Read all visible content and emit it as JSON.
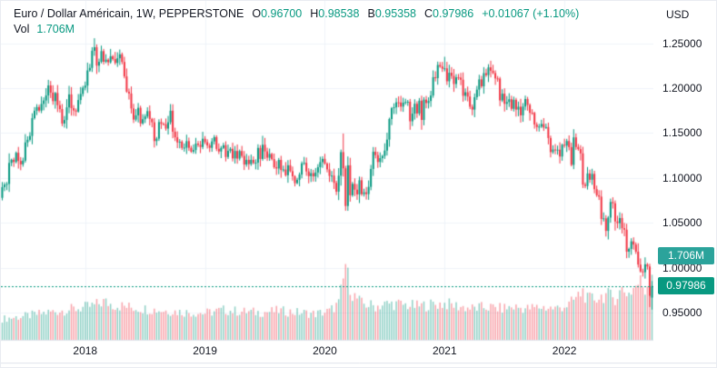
{
  "header": {
    "title": "Euro / Dollar Américain, 1W, PEPPERSTONE",
    "ohlc": [
      {
        "label": "O",
        "value": "0.96700"
      },
      {
        "label": "H",
        "value": "0.98538"
      },
      {
        "label": "B",
        "value": "0.95358"
      },
      {
        "label": "C",
        "value": "0.97986"
      }
    ],
    "change": "+0.01067 (+1.10%)",
    "vol_label": "Vol",
    "vol_value": "1.706M"
  },
  "price_axis": {
    "currency": "USD",
    "ticks": [
      "1.25000",
      "1.20000",
      "1.15000",
      "1.10000",
      "1.05000",
      "1.00000",
      "0.95000"
    ],
    "tick_prices": [
      1.25,
      1.2,
      1.15,
      1.1,
      1.05,
      1.0,
      0.95
    ]
  },
  "time_axis": {
    "years": [
      "2018",
      "2019",
      "2020",
      "2021",
      "2022"
    ]
  },
  "badges": {
    "volume": "1.706M",
    "price": "0.97986"
  },
  "colors": {
    "up": "#089981",
    "down": "#f23645",
    "vol_up": "rgba(8,153,129,0.45)",
    "vol_down": "rgba(242,54,69,0.45)",
    "grid": "#f0f3fa",
    "border": "#e0e3eb",
    "axis_text": "#131722",
    "accent_green": "#089981",
    "badge_price_bg": "#089981",
    "badge_vol_bg": "#2ba39b",
    "price_line": "#089981"
  },
  "chart_data": {
    "type": "candlestick",
    "title": "Euro / Dollar Américain",
    "exchange": "PEPPERSTONE",
    "interval": "1W",
    "quote_currency": "USD",
    "legend_values": {
      "open": 0.967,
      "high": 0.98538,
      "low": 0.95358,
      "close": 0.97986,
      "change": 0.01067,
      "change_pct": 1.1,
      "volume": "1.706M"
    },
    "current_price": 0.97986,
    "visible_price_range": {
      "from": 0.92,
      "to": 1.297
    },
    "y_ticks": [
      1.25,
      1.2,
      1.15,
      1.1,
      1.05,
      1.0,
      0.95
    ],
    "x_year_labels": [
      "2018",
      "2019",
      "2020",
      "2021",
      "2022"
    ],
    "first_open": 1.078,
    "closes_2017": [
      1.0899,
      1.0927,
      1.0934,
      1.1168,
      1.1203,
      1.1178,
      1.1281,
      1.119,
      1.1152,
      1.1193,
      1.1396,
      1.1425,
      1.1468,
      1.1666,
      1.1748,
      1.1789,
      1.175,
      1.1824,
      1.1862,
      1.1918,
      1.203,
      1.195,
      1.1855,
      1.1946,
      1.181,
      1.1767,
      1.1606,
      1.1645,
      1.1786,
      1.193,
      1.1777,
      1.1751,
      1.1739,
      1.1867,
      1.1935,
      1.2005
    ],
    "closes_2018": [
      1.2028,
      1.2196,
      1.2225,
      1.2415,
      1.2455,
      1.225,
      1.2292,
      1.2411,
      1.2293,
      1.2316,
      1.2287,
      1.2354,
      1.2323,
      1.228,
      1.2332,
      1.2376,
      1.2291,
      1.213,
      1.196,
      1.194,
      1.1774,
      1.165,
      1.1697,
      1.1781,
      1.1607,
      1.1654,
      1.1685,
      1.1744,
      1.1657,
      1.162,
      1.1411,
      1.1438,
      1.1622,
      1.1602,
      1.1599,
      1.155,
      1.162,
      1.1748,
      1.1515,
      1.1453,
      1.1396,
      1.1404,
      1.1335,
      1.1338,
      1.141,
      1.1336,
      1.1293,
      1.1311,
      1.1383,
      1.1369,
      1.1345,
      1.1437
    ],
    "closes_2019": [
      1.1399,
      1.1362,
      1.1336,
      1.1407,
      1.1455,
      1.1324,
      1.1295,
      1.1335,
      1.1365,
      1.1234,
      1.1302,
      1.1325,
      1.1218,
      1.1301,
      1.1216,
      1.13,
      1.1246,
      1.115,
      1.1202,
      1.1155,
      1.1202,
      1.1168,
      1.1171,
      1.1335,
      1.1212,
      1.137,
      1.1296,
      1.1226,
      1.1268,
      1.121,
      1.112,
      1.1106,
      1.1201,
      1.1089,
      1.1095,
      1.1031,
      1.1142,
      1.1076,
      1.1019,
      1.0943,
      1.098,
      1.1038,
      1.1163,
      1.1169,
      1.1073,
      1.1021,
      1.1054,
      1.1018,
      1.1061,
      1.1121,
      1.1177,
      1.1213
    ],
    "closes_2020": [
      1.116,
      1.1096,
      1.1024,
      1.1027,
      1.0946,
      1.0848,
      1.1026,
      1.1288,
      1.1108,
      1.0689,
      1.1141,
      1.0808,
      1.0935,
      1.087,
      1.0818,
      1.0975,
      1.082,
      1.0841,
      1.0821,
      1.0902,
      1.1101,
      1.1292,
      1.1255,
      1.1178,
      1.1221,
      1.1246,
      1.1305,
      1.1427,
      1.1656,
      1.1778,
      1.1787,
      1.1842,
      1.184,
      1.1794,
      1.1838,
      1.1846,
      1.1848,
      1.1631,
      1.1716,
      1.1826,
      1.1718,
      1.186,
      1.1646,
      1.1872,
      1.1834,
      1.1857,
      1.1918,
      1.2121,
      1.2111,
      1.2257,
      1.224,
      1.2216
    ],
    "closes_2021": [
      1.222,
      1.2076,
      1.2171,
      1.2136,
      1.2046,
      1.212,
      1.2117,
      1.2093,
      1.1915,
      1.1954,
      1.1906,
      1.1793,
      1.1761,
      1.1899,
      1.1983,
      1.2097,
      1.202,
      1.2166,
      1.2145,
      1.2231,
      1.2193,
      1.2167,
      1.2108,
      1.2106,
      1.1863,
      1.1938,
      1.1825,
      1.1845,
      1.1876,
      1.177,
      1.187,
      1.1761,
      1.1793,
      1.1697,
      1.1795,
      1.1879,
      1.1813,
      1.1725,
      1.1724,
      1.1595,
      1.1567,
      1.1572,
      1.1601,
      1.1561,
      1.1567,
      1.1445,
      1.1288,
      1.1317,
      1.1313,
      1.1315,
      1.1239,
      1.137
    ],
    "closes_2022": [
      1.136,
      1.1411,
      1.1344,
      1.1146,
      1.1452,
      1.1345,
      1.1321,
      1.1274,
      1.0926,
      1.0911,
      1.1051,
      1.0981,
      1.1046,
      1.0876,
      1.0808,
      1.0793,
      1.0545,
      1.0551,
      1.0412,
      1.056,
      1.0733,
      1.0719,
      1.0517,
      1.0498,
      1.0555,
      1.0442,
      1.0425,
      1.0181,
      1.0211,
      1.0295,
      1.026,
      1.018,
      1.0037,
      0.9961,
      0.9952,
      1.004,
      1.0016,
      0.969,
      0.9799
    ],
    "last_ohlc": {
      "open": 0.967,
      "high": 0.98538,
      "low": 0.95358,
      "close": 0.97986
    },
    "wick_overrides": {
      "20": {
        "h": 1.2092
      },
      "40": {
        "h": 1.2555
      },
      "148": {
        "h": 1.1495
      },
      "149": {
        "l": 1.0636
      },
      "150": {
        "l": 1.0635
      },
      "192": {
        "h": 1.2349
      },
      "211": {
        "h": 1.2266
      },
      "249": {
        "h": 1.1495
      },
      "262": {
        "l": 1.0349
      },
      "281": {
        "l": 0.9565
      }
    },
    "volume_unit": "M",
    "last_volume_m": 1.706,
    "volume_max_m": 2.0,
    "volume_anchors_m": [
      [
        0,
        0.55
      ],
      [
        10,
        0.62
      ],
      [
        20,
        0.72
      ],
      [
        30,
        0.8
      ],
      [
        36,
        0.85
      ],
      [
        40,
        0.9
      ],
      [
        44,
        1.0
      ],
      [
        48,
        0.92
      ],
      [
        56,
        0.85
      ],
      [
        64,
        0.8
      ],
      [
        72,
        0.76
      ],
      [
        80,
        0.72
      ],
      [
        88,
        0.7
      ],
      [
        96,
        0.78
      ],
      [
        104,
        0.74
      ],
      [
        112,
        0.72
      ],
      [
        120,
        0.76
      ],
      [
        128,
        0.72
      ],
      [
        136,
        0.68
      ],
      [
        142,
        0.75
      ],
      [
        146,
        0.95
      ],
      [
        148,
        1.55
      ],
      [
        149,
        2.0
      ],
      [
        150,
        1.65
      ],
      [
        152,
        1.2
      ],
      [
        156,
        0.95
      ],
      [
        162,
        0.88
      ],
      [
        168,
        0.95
      ],
      [
        174,
        0.92
      ],
      [
        180,
        0.88
      ],
      [
        186,
        0.92
      ],
      [
        192,
        0.95
      ],
      [
        198,
        0.88
      ],
      [
        204,
        0.82
      ],
      [
        210,
        0.86
      ],
      [
        216,
        0.82
      ],
      [
        222,
        0.86
      ],
      [
        228,
        0.82
      ],
      [
        234,
        0.86
      ],
      [
        240,
        0.82
      ],
      [
        246,
        0.92
      ],
      [
        250,
        1.15
      ],
      [
        252,
        1.28
      ],
      [
        254,
        1.05
      ],
      [
        258,
        1.1
      ],
      [
        262,
        1.18
      ],
      [
        266,
        1.1
      ],
      [
        269,
        1.32
      ],
      [
        272,
        1.22
      ],
      [
        275,
        1.42
      ],
      [
        277,
        1.52
      ],
      [
        279,
        1.3
      ],
      [
        281,
        1.62
      ],
      [
        282,
        1.706
      ]
    ],
    "grid": true,
    "legend_position": "top-left"
  }
}
